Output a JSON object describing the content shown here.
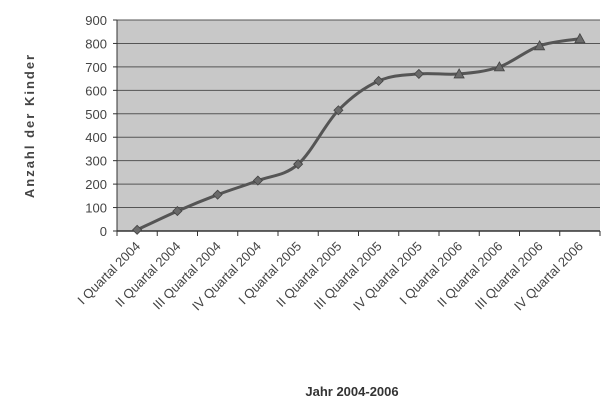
{
  "chart_data": {
    "type": "line",
    "title": "",
    "xlabel": "Jahr 2004-2006",
    "ylabel": "Anzahl der Kinder",
    "ylim": [
      0,
      900
    ],
    "yticks": [
      0,
      100,
      200,
      300,
      400,
      500,
      600,
      700,
      800,
      900
    ],
    "grid": true,
    "legend": "none",
    "categories": [
      "I Quartal 2004",
      "II Quartal 2004",
      "III Quartal 2004",
      "IV Quartal 2004",
      "I Quartal 2005",
      "II Quartal 2005",
      "III Quartal 2005",
      "IV Quartal 2005",
      "I Quartal 2006",
      "II Quartal 2006",
      "III Quartal 2006",
      "IV Quartal 2006"
    ],
    "series": [
      {
        "values": [
          5,
          85,
          155,
          215,
          285,
          515,
          640,
          670,
          670,
          700,
          790,
          820
        ],
        "color": "#555555",
        "markers": [
          "diamond",
          "diamond",
          "diamond",
          "diamond",
          "diamond",
          "diamond",
          "diamond",
          "diamond",
          "triangle",
          "triangle",
          "triangle",
          "triangle"
        ]
      }
    ],
    "colors": {
      "plot_background": "#c8c8c8",
      "gridline": "#555555",
      "axis": "#333333"
    }
  }
}
